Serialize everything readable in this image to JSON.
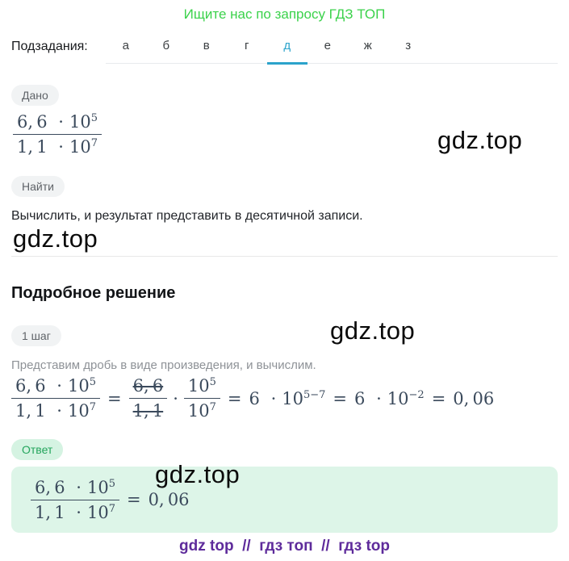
{
  "promo": {
    "text": "Ищите нас по запросу ГДЗ ТОП"
  },
  "subtasks": {
    "label": "Подзадания:",
    "tabs": [
      "а",
      "б",
      "в",
      "г",
      "д",
      "е",
      "ж",
      "з"
    ],
    "active": "д"
  },
  "given": {
    "badge": "Дано"
  },
  "find": {
    "badge": "Найти",
    "text": "Вычислить, и результат представить в десятичной записи."
  },
  "solution": {
    "heading": "Подробное решение",
    "step_badge": "1 шаг",
    "step_text": "Представим дробь в виде произведения, и вычислим."
  },
  "answer": {
    "badge": "Ответ"
  },
  "math": {
    "num_coeff": "6, 6",
    "den_coeff": "1, 1",
    "dot": "·",
    "base": "10",
    "num_exp": "5",
    "den_exp": "7",
    "equals": "=",
    "six": "6",
    "exp_diff": "5−7",
    "exp_neg": "−2",
    "result": "0, 06"
  },
  "watermark": {
    "text": "gdz.top"
  },
  "footer": {
    "text": "gdz top  //  гдз топ  //  гдз top"
  },
  "colors": {
    "promo_green": "#3bd24b",
    "tab_active_blue": "#2ba3cb",
    "answer_green_bg": "#ddf5e8",
    "badge_green_text": "#23a55c",
    "footer_purple": "#5e2b9b",
    "math_ink": "#3b4a5c"
  }
}
